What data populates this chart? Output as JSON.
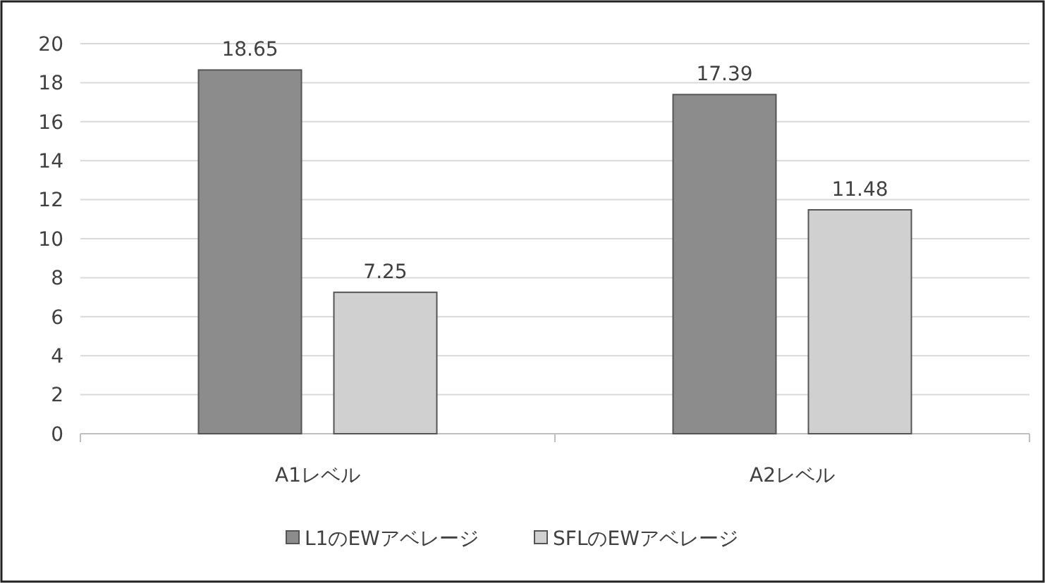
{
  "chart_data": {
    "type": "bar",
    "categories": [
      "A1レベル",
      "A2レベル"
    ],
    "series": [
      {
        "name": "L1のEWアベレージ",
        "color": "#8c8c8c",
        "values": [
          18.65,
          17.39
        ]
      },
      {
        "name": "SFLのEWアベレージ",
        "color": "#d0d0d0",
        "values": [
          7.25,
          11.48
        ]
      }
    ],
    "ylim": [
      0,
      20
    ],
    "yticks": [
      0,
      2,
      4,
      6,
      8,
      10,
      12,
      14,
      16,
      18,
      20
    ],
    "grid": "y",
    "legend": "bottom",
    "data_labels": true
  }
}
